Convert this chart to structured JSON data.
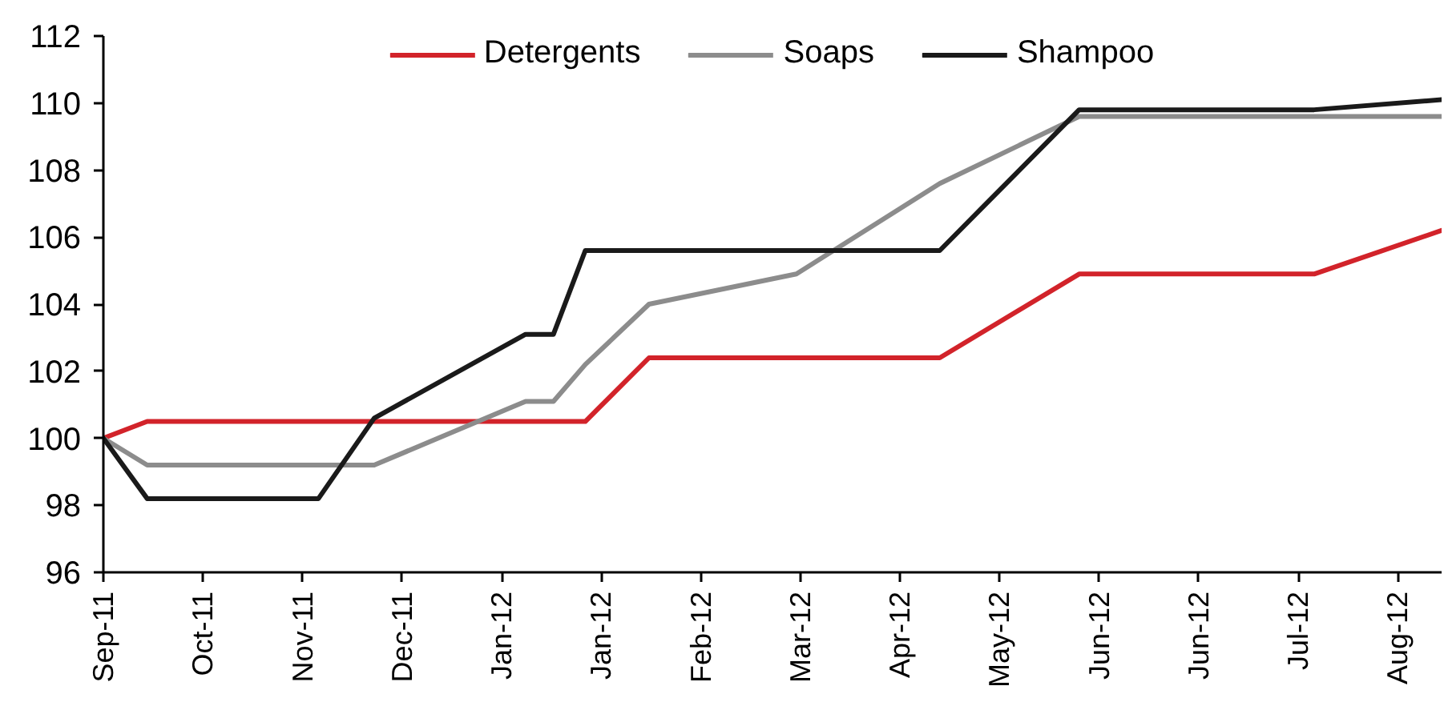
{
  "chart_data": {
    "type": "line",
    "xlim": [
      "2011-09-26",
      "2012-08-27"
    ],
    "xticks": [
      {
        "value": "2011-09-26",
        "label": "Sep-11"
      },
      {
        "value": "2011-10-21",
        "label": "Oct-11"
      },
      {
        "value": "2011-11-15",
        "label": "Nov-11"
      },
      {
        "value": "2011-12-10",
        "label": "Dec-11"
      },
      {
        "value": "2012-01-04",
        "label": "Jan-12"
      },
      {
        "value": "2012-01-29",
        "label": "Jan-12"
      },
      {
        "value": "2012-02-23",
        "label": "Feb-12"
      },
      {
        "value": "2012-03-19",
        "label": "Mar-12"
      },
      {
        "value": "2012-04-13",
        "label": "Apr-12"
      },
      {
        "value": "2012-05-08",
        "label": "May-12"
      },
      {
        "value": "2012-06-02",
        "label": "Jun-12"
      },
      {
        "value": "2012-06-27",
        "label": "Jun-12"
      },
      {
        "value": "2012-07-22",
        "label": "Jul-12"
      },
      {
        "value": "2012-08-16",
        "label": "Aug-12"
      }
    ],
    "ylim": [
      96,
      112
    ],
    "yticks": [
      96,
      98,
      100,
      102,
      104,
      106,
      108,
      110,
      112
    ],
    "grid": false,
    "legend": "top",
    "line_style": "solid",
    "series": [
      {
        "name": "Detergents",
        "color": "#d2232a",
        "x": [
          "2011-09-26",
          "2011-10-07",
          "2012-01-25",
          "2012-02-10",
          "2012-04-23",
          "2012-05-28",
          "2012-07-26",
          "2012-08-27"
        ],
        "values": [
          100,
          100.5,
          100.5,
          102.4,
          102.4,
          104.9,
          104.9,
          106.2
        ]
      },
      {
        "name": "Soaps",
        "color": "#8c8c8c",
        "x": [
          "2011-09-26",
          "2011-10-07",
          "2011-12-03",
          "2012-01-10",
          "2012-01-17",
          "2012-01-25",
          "2012-02-10",
          "2012-03-18",
          "2012-04-23",
          "2012-05-28",
          "2012-08-27"
        ],
        "values": [
          100,
          99.2,
          99.2,
          101.1,
          101.1,
          102.2,
          104.0,
          104.9,
          107.6,
          109.6,
          109.6
        ]
      },
      {
        "name": "Shampoo",
        "color": "#1a1a1a",
        "x": [
          "2011-09-26",
          "2011-10-07",
          "2011-11-19",
          "2011-12-03",
          "2012-01-10",
          "2012-01-17",
          "2012-01-25",
          "2012-04-23",
          "2012-05-28",
          "2012-07-26",
          "2012-08-27"
        ],
        "values": [
          100,
          98.2,
          98.2,
          100.6,
          103.1,
          103.1,
          105.6,
          105.6,
          109.8,
          109.8,
          110.1
        ]
      }
    ]
  }
}
